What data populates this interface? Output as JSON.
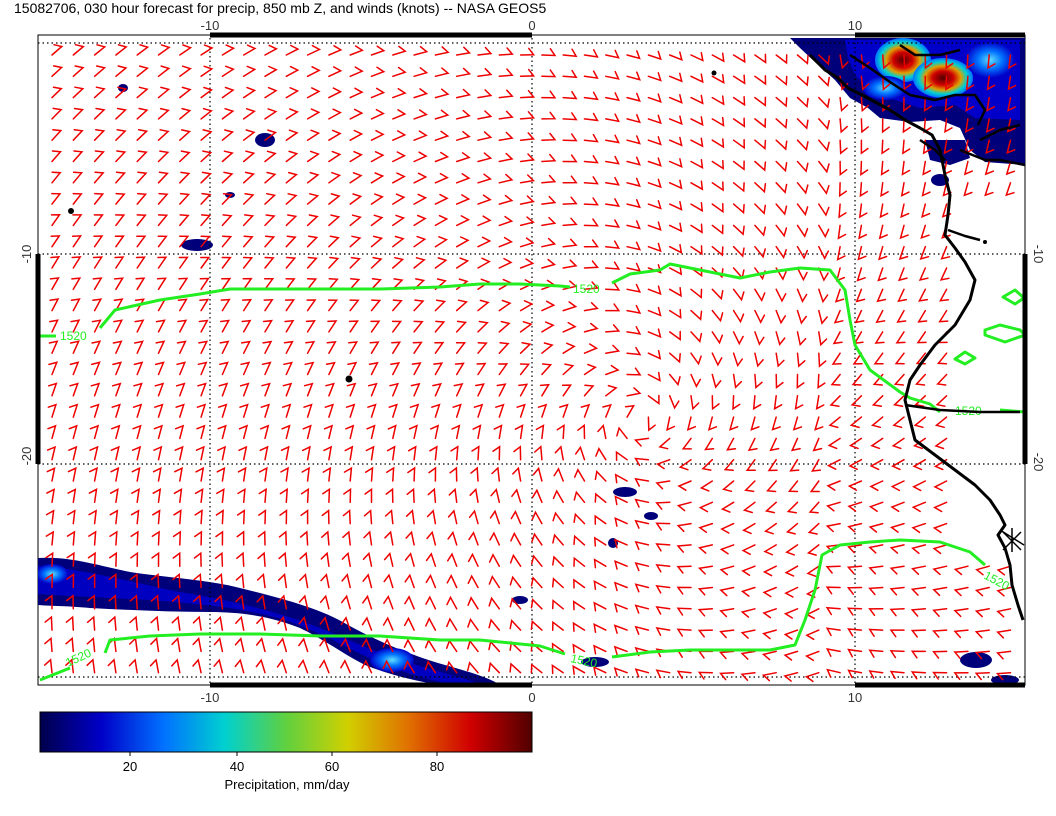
{
  "title": "15082706, 030 hour forecast for precip, 850 mb Z, and winds (knots) -- NASA GEOS5",
  "map": {
    "x_ticks_top": [
      "-10",
      "0",
      "10"
    ],
    "x_ticks_bottom": [
      "-10",
      "0",
      "10"
    ],
    "y_ticks_left": [
      "-10",
      "-20"
    ],
    "y_ticks_right": [
      "-10",
      "-20"
    ],
    "contour_labels": [
      "1520",
      "1520",
      "1520",
      "1520",
      "1520",
      "1520"
    ],
    "contour_color": "#22ee22",
    "wind_barb_color": "#ee0000",
    "coastline_color": "#000000"
  },
  "colorbar": {
    "tick_labels": [
      "20",
      "40",
      "60",
      "80"
    ],
    "label": "Precipitation, mm/day",
    "colors": [
      "#00004c",
      "#0000c8",
      "#0070ff",
      "#00d0d0",
      "#60d040",
      "#d0d000",
      "#e07000",
      "#d00000",
      "#500000"
    ]
  }
}
